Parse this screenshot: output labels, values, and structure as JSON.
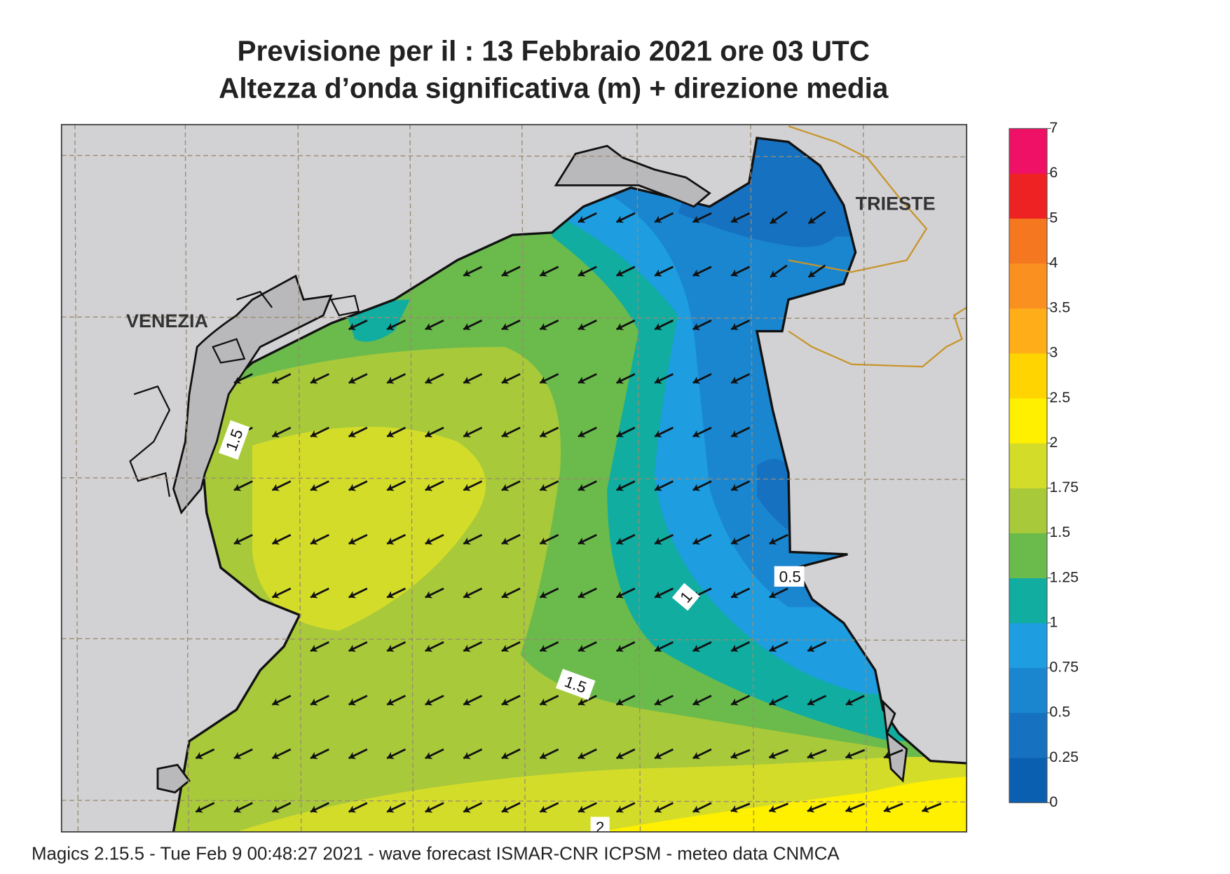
{
  "header": {
    "title": "Previsione per il  :  13  Febbraio 2021   ore 03 UTC",
    "subtitle": "Altezza d’onda significativa (m) + direzione media"
  },
  "map": {
    "labels": [
      "VENEZIA",
      "TRIESTE"
    ],
    "contour_labels": [
      "1.5",
      "1",
      "0.5",
      "1.5",
      "2"
    ]
  },
  "colorbar": {
    "levels": [
      0,
      0.25,
      0.5,
      0.75,
      1,
      1.25,
      1.5,
      1.75,
      2,
      2.5,
      3,
      3.5,
      4,
      5,
      6,
      7
    ],
    "colors": [
      "#0a5fb0",
      "#1672c0",
      "#1a86d0",
      "#1e9de0",
      "#10ada0",
      "#6bbb4c",
      "#a8c93a",
      "#d4dc2a",
      "#fff000",
      "#ffd400",
      "#ffae1a",
      "#f99020",
      "#f57820",
      "#ee2222",
      "#ee1166"
    ]
  },
  "footer": "Magics 2.15.5 - Tue Feb  9 00:48:27 2021 - wave forecast  ISMAR-CNR  ICPSM - meteo data   CNMCA"
}
